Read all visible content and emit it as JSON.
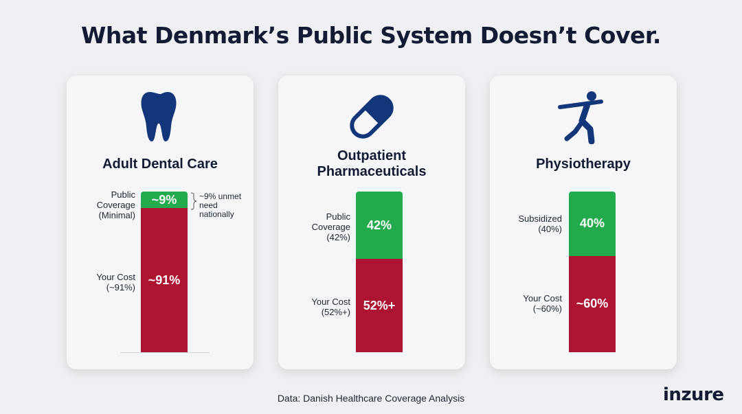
{
  "title": "What Denmark’s Public System Doesn’t Cover.",
  "source": "Data: Danish Healthcare Coverage Analysis",
  "logo": "inzure",
  "colors": {
    "covered": "#22aa4c",
    "cost": "#ad1432",
    "navy": "#121b33"
  },
  "chart_data": {
    "type": "bar",
    "stacked": true,
    "categories": [
      "Adult Dental Care",
      "Outpatient Pharmaceuticals",
      "Physiotherapy"
    ],
    "series": [
      {
        "name": "Public Coverage",
        "values": [
          9,
          42,
          40
        ],
        "labels": [
          "~9%",
          "42%",
          "40%"
        ],
        "side_labels": [
          "Public Coverage (Minimal)",
          "Public Coverage (42%)",
          "Subsidized (40%)"
        ]
      },
      {
        "name": "Your Cost",
        "values": [
          91,
          52,
          60
        ],
        "labels": [
          "~91%",
          "52%+",
          "~60%"
        ],
        "side_labels": [
          "Your Cost (~91%)",
          "Your Cost (52%+)",
          "Your Cost (~60%)"
        ]
      }
    ],
    "icons": [
      "tooth-icon",
      "pill-capsule-icon",
      "exercise-figure-icon"
    ],
    "annotations": [
      {
        "category": "Adult Dental Care",
        "text": "~9% unmet need nationally"
      }
    ]
  },
  "cards": [
    {
      "title": "Adult Dental Care",
      "covered_label": "~9%",
      "cost_label": "~91%",
      "covered_side": [
        "Public",
        "Coverage",
        "(Minimal)"
      ],
      "cost_side": [
        "Your Cost",
        "(~91%)"
      ],
      "note": [
        "~9% unmet",
        "need",
        "nationally"
      ]
    },
    {
      "title": [
        "Outpatient",
        "Pharmaceuticals"
      ],
      "covered_label": "42%",
      "cost_label": "52%+",
      "covered_side": [
        "Public",
        "Coverage",
        "(42%)"
      ],
      "cost_side": [
        "Your Cost",
        "(52%+)"
      ]
    },
    {
      "title": "Physiotherapy",
      "covered_label": "40%",
      "cost_label": "~60%",
      "covered_side": [
        "Subsidized",
        "(40%)"
      ],
      "cost_side": [
        "Your Cost",
        "(~60%)"
      ]
    }
  ]
}
